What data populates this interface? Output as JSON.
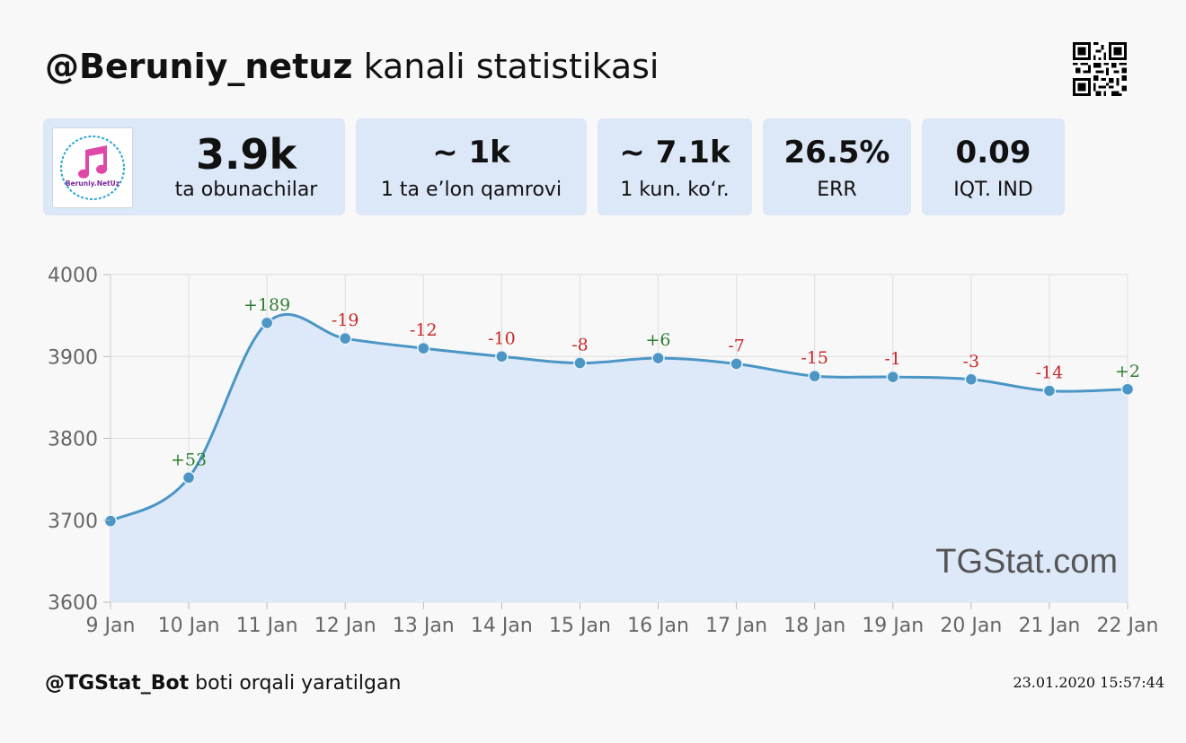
{
  "header": {
    "channel": "@Beruniy_netuz",
    "title_suffix": " kanali statistikasi",
    "qr_icon": "qr-code-icon"
  },
  "cards": [
    {
      "value": "3.9k",
      "label": "ta obunachilar",
      "avatar_text": "Beruniy.NetUz",
      "avatar_icon": "music-note-icon"
    },
    {
      "value": "~ 1k",
      "label": "1 ta e’lon qamrovi"
    },
    {
      "value": "~ 7.1k",
      "label": "1 kun. ko‘r."
    },
    {
      "value": "26.5%",
      "label": "ERR"
    },
    {
      "value": "0.09",
      "label": "IQT. IND"
    }
  ],
  "chart_data": {
    "type": "area",
    "categories": [
      "9 Jan",
      "10 Jan",
      "11 Jan",
      "12 Jan",
      "13 Jan",
      "14 Jan",
      "15 Jan",
      "16 Jan",
      "17 Jan",
      "18 Jan",
      "19 Jan",
      "20 Jan",
      "21 Jan",
      "22 Jan"
    ],
    "values": [
      3699,
      3752,
      3941,
      3922,
      3910,
      3900,
      3892,
      3898,
      3891,
      3876,
      3875,
      3872,
      3858,
      3860
    ],
    "deltas": [
      "",
      "+53",
      "+189",
      "-19",
      "-12",
      "-10",
      "-8",
      "+6",
      "-7",
      "-15",
      "-1",
      "-3",
      "-14",
      "+2"
    ],
    "yticks": [
      "4000",
      "3900",
      "3800",
      "3700",
      "3600"
    ],
    "ylim": [
      3600,
      4000
    ],
    "grid": true,
    "watermark": "TGStat.com",
    "colors": {
      "line": "#4b96c4",
      "fill": "#dde9f9",
      "positive": "#2e7d32",
      "negative": "#c62828"
    }
  },
  "footer": {
    "bot": "@TGStat_Bot",
    "text": " boti orqali yaratilgan",
    "timestamp": "23.01.2020 15:57:44"
  }
}
